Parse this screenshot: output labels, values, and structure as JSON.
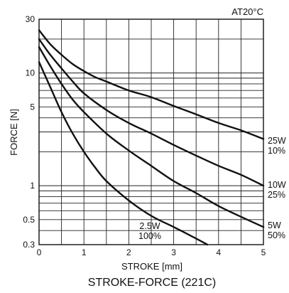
{
  "chart_data": {
    "type": "line",
    "title": "STROKE-FORCE (221C)",
    "note": "AT20°C",
    "xlabel": "STROKE [mm]",
    "ylabel": "FORCE [N]",
    "xlim": [
      0,
      5
    ],
    "ylim": [
      0.3,
      30
    ],
    "y_scale": "log",
    "grid": true,
    "x_ticks": [
      0,
      1,
      2,
      3,
      4,
      5
    ],
    "x_tick_labels": [
      "0",
      "1",
      "2",
      "3",
      "4",
      "5"
    ],
    "y_ticks": [
      0.3,
      0.5,
      1,
      5,
      10,
      30
    ],
    "y_tick_labels": [
      "0.3",
      "0.5",
      "1",
      "5",
      "10",
      "30"
    ],
    "series": [
      {
        "label_lines": [
          "25W",
          "10%"
        ],
        "x": [
          0,
          0.25,
          0.5,
          0.75,
          1,
          1.25,
          1.5,
          2,
          2.5,
          3,
          3.5,
          4,
          4.5,
          5
        ],
        "y": [
          24,
          18,
          14.5,
          12,
          10.4,
          9.2,
          8.4,
          7.0,
          6.1,
          5.1,
          4.3,
          3.6,
          3.1,
          2.6
        ]
      },
      {
        "label_lines": [
          "10W",
          "25%"
        ],
        "x": [
          0,
          0.25,
          0.5,
          0.75,
          1,
          1.5,
          2,
          2.5,
          3,
          3.5,
          4,
          4.5,
          5
        ],
        "y": [
          20,
          14.5,
          11,
          8.4,
          6.6,
          4.7,
          3.6,
          2.9,
          2.3,
          1.85,
          1.5,
          1.25,
          1.0
        ]
      },
      {
        "label_lines": [
          "5W",
          "50%"
        ],
        "x": [
          0,
          0.25,
          0.5,
          0.75,
          1,
          1.5,
          2,
          2.5,
          3,
          3.5,
          4,
          4.5,
          5
        ],
        "y": [
          17,
          11.5,
          8,
          5.8,
          4.5,
          2.9,
          2.05,
          1.5,
          1.1,
          0.86,
          0.66,
          0.53,
          0.43
        ]
      },
      {
        "label_lines": [
          "2.5W",
          "100%"
        ],
        "x": [
          0,
          0.25,
          0.5,
          0.75,
          1,
          1.25,
          1.5,
          2,
          2.5,
          3,
          3.5,
          3.75
        ],
        "y": [
          12.5,
          7.5,
          4.5,
          2.9,
          2.0,
          1.45,
          1.1,
          0.74,
          0.54,
          0.43,
          0.34,
          0.3
        ]
      }
    ]
  }
}
